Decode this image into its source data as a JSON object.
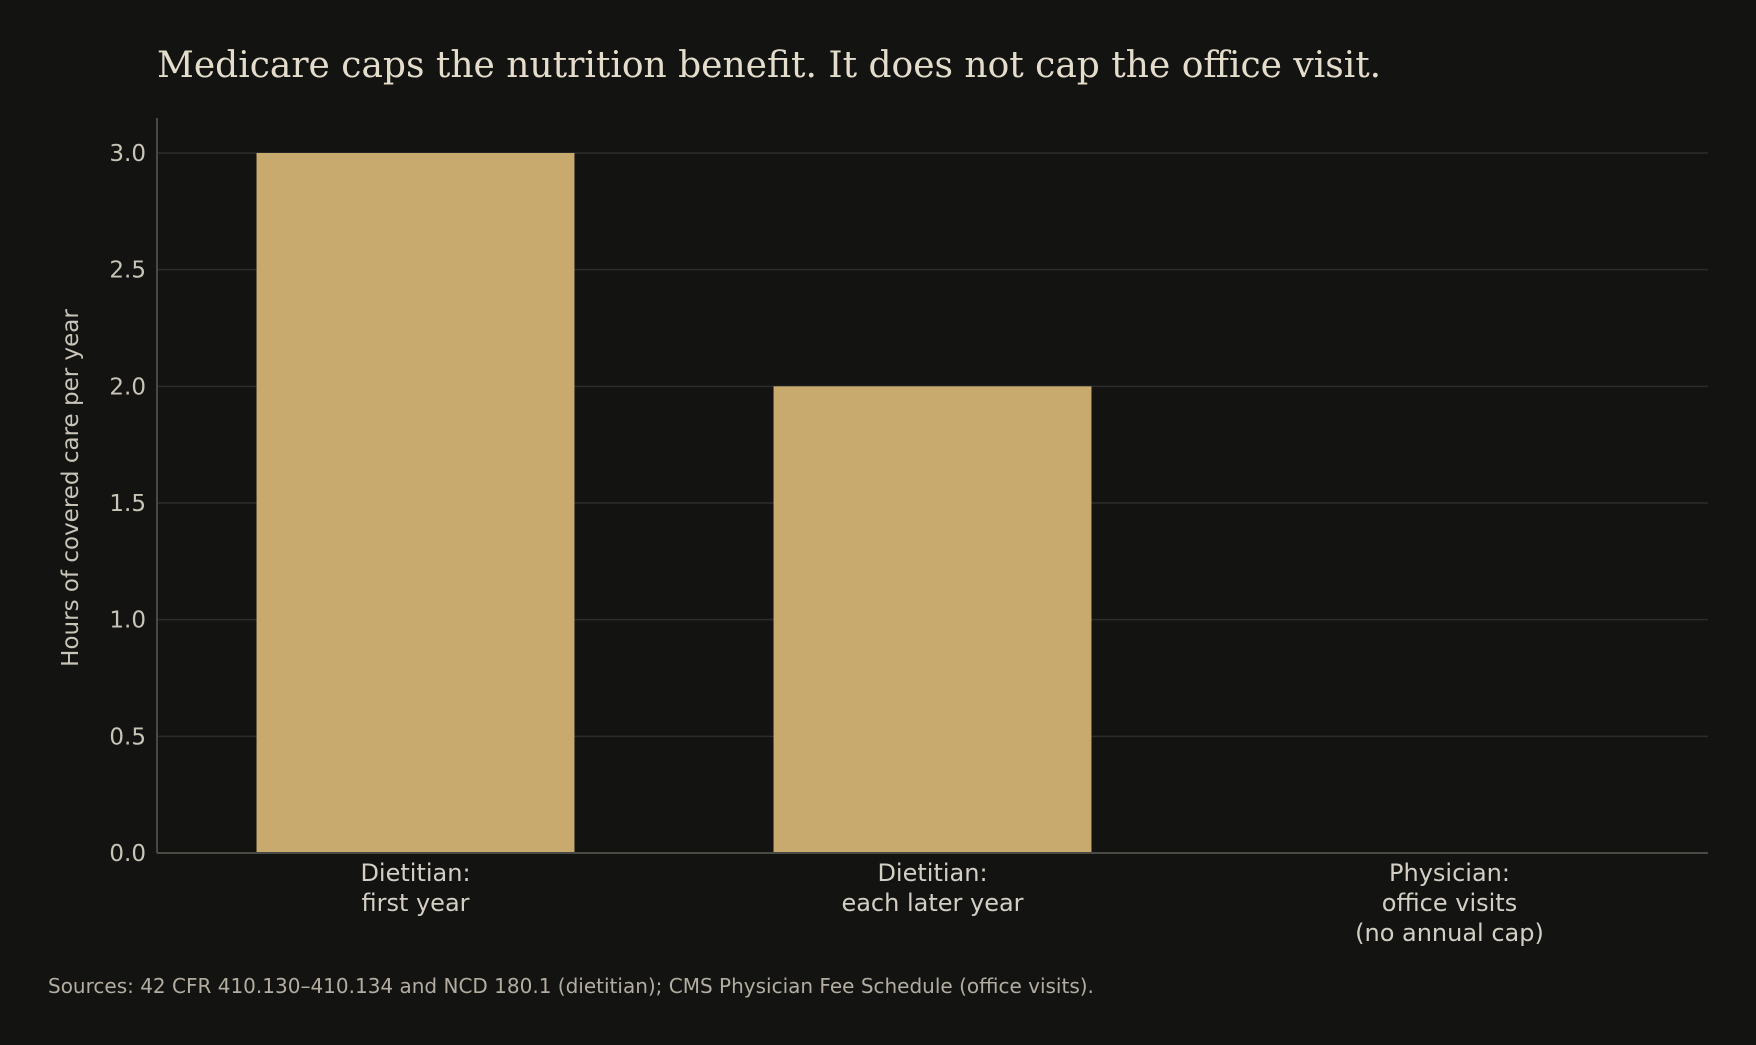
{
  "chart_data": {
    "type": "bar",
    "title": "Medicare caps the nutrition benefit. It does not cap the office visit.",
    "ylabel": "Hours of covered care per year",
    "xlabel": "",
    "categories": [
      [
        "Dietitian:",
        "first year"
      ],
      [
        "Dietitian:",
        "each later year"
      ],
      [
        "Physician:",
        "office visits",
        "(no annual cap)"
      ]
    ],
    "values": [
      3,
      2,
      null
    ],
    "ylim": [
      0,
      3.15
    ],
    "yticks": [
      0,
      0.5,
      1,
      1.5,
      2,
      2.5,
      3
    ],
    "ytick_labels": [
      "0.0",
      "0.5",
      "1.0",
      "1.5",
      "2.0",
      "2.5",
      "3.0"
    ],
    "grid": true,
    "bar_color": "#c8aa6e",
    "background_color": "#131311",
    "source": "Sources: 42 CFR 410.130–410.134 and NCD 180.1 (dietitian); CMS Physician Fee Schedule (office visits)."
  }
}
